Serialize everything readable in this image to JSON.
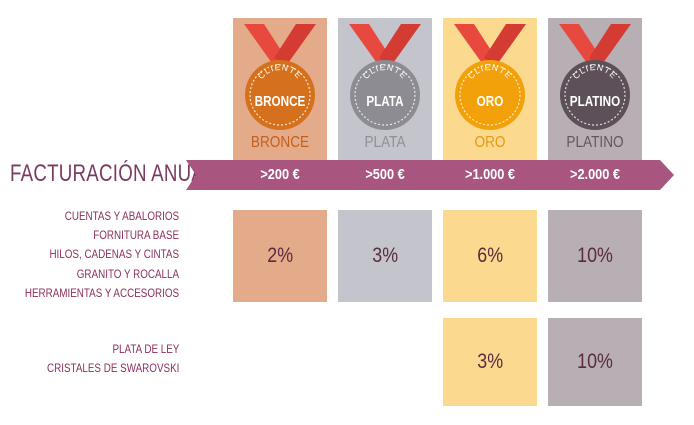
{
  "title": "FACTURACIÓN ANUAL",
  "tiers": [
    {
      "medal_top": "CLIENTE",
      "medal_name": "BRONCE",
      "label": "BRONCE",
      "threshold": ">200 €",
      "color_medal": "#d5711d",
      "color_bg": "#e4ab8b",
      "color_label": "#c4601a"
    },
    {
      "medal_top": "CLIENTE",
      "medal_name": "PLATA",
      "label": "PLATA",
      "threshold": ">500 €",
      "color_medal": "#8c8c92",
      "color_bg": "#c3c4cc",
      "color_label": "#8f8f95"
    },
    {
      "medal_top": "CLIENTE",
      "medal_name": "ORO",
      "label": "ORO",
      "threshold": ">1.000 €",
      "color_medal": "#f2a10b",
      "color_bg": "#fbd98f",
      "color_label": "#e59a14"
    },
    {
      "medal_top": "CLIENTE",
      "medal_name": "PLATINO",
      "label": "PLATINO",
      "threshold": ">2.000 €",
      "color_medal": "#5d5058",
      "color_bg": "#b8afb4",
      "color_label": "#625760"
    }
  ],
  "group1": {
    "categories": [
      "CUENTAS Y ABALORIOS",
      "FORNITURA BASE",
      "HILOS, CADENAS Y CINTAS",
      "GRANITO Y ROCALLA",
      "HERRAMIENTAS Y ACCESORIOS"
    ],
    "discounts": [
      "2%",
      "3%",
      "6%",
      "10%"
    ]
  },
  "group2": {
    "categories": [
      "PLATA DE LEY",
      "CRISTALES DE SWAROVSKI"
    ],
    "discounts": [
      "",
      "",
      "3%",
      "10%"
    ]
  },
  "colors": {
    "ribbon_red": "#e8493f",
    "band_purple": "#a8557f",
    "title_purple": "#7b3a60",
    "category_purple": "#8b2f5b"
  }
}
